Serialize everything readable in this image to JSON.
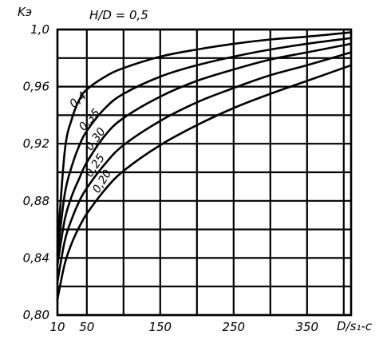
{
  "chart_data": {
    "type": "line",
    "title": "",
    "annotation": "H/D = 0,5",
    "ylabel": "Kэ",
    "xlabel": "D/s₁-c",
    "xlim": [
      10,
      410
    ],
    "ylim": [
      0.8,
      1.0
    ],
    "grid": true,
    "x_grid": [
      10,
      50,
      100,
      150,
      200,
      250,
      300,
      350,
      400
    ],
    "y_grid": [
      0.8,
      0.82,
      0.84,
      0.86,
      0.88,
      0.9,
      0.92,
      0.94,
      0.96,
      0.98,
      1.0
    ],
    "x_tick_labels": [
      {
        "value": 10,
        "text": "10"
      },
      {
        "value": 50,
        "text": "50"
      },
      {
        "value": 150,
        "text": "150"
      },
      {
        "value": 250,
        "text": "250"
      },
      {
        "value": 350,
        "text": "350"
      }
    ],
    "y_tick_labels": [
      {
        "value": 0.8,
        "text": "0,80"
      },
      {
        "value": 0.84,
        "text": "0,84"
      },
      {
        "value": 0.88,
        "text": "0,88"
      },
      {
        "value": 0.92,
        "text": "0,92"
      },
      {
        "value": 0.96,
        "text": "0,96"
      },
      {
        "value": 1.0,
        "text": "1,0"
      }
    ],
    "x": [
      10,
      20,
      30,
      40,
      50,
      75,
      100,
      150,
      200,
      250,
      300,
      350,
      410
    ],
    "series": [
      {
        "name": "0,4",
        "values": [
          0.847,
          0.915,
          0.938,
          0.951,
          0.958,
          0.967,
          0.973,
          0.981,
          0.986,
          0.99,
          0.993,
          0.995,
          0.998
        ]
      },
      {
        "name": "0,35",
        "values": [
          0.842,
          0.885,
          0.905,
          0.919,
          0.929,
          0.945,
          0.955,
          0.967,
          0.975,
          0.981,
          0.986,
          0.99,
          0.994
        ]
      },
      {
        "name": "0,30",
        "values": [
          0.835,
          0.867,
          0.884,
          0.896,
          0.907,
          0.926,
          0.938,
          0.953,
          0.964,
          0.972,
          0.979,
          0.984,
          0.99
        ]
      },
      {
        "name": "0,25",
        "values": [
          0.823,
          0.852,
          0.868,
          0.88,
          0.889,
          0.906,
          0.919,
          0.936,
          0.949,
          0.959,
          0.968,
          0.975,
          0.984
        ]
      },
      {
        "name": "0,20",
        "values": [
          0.811,
          0.836,
          0.851,
          0.862,
          0.871,
          0.888,
          0.901,
          0.919,
          0.933,
          0.945,
          0.955,
          0.964,
          0.975
        ]
      }
    ]
  }
}
